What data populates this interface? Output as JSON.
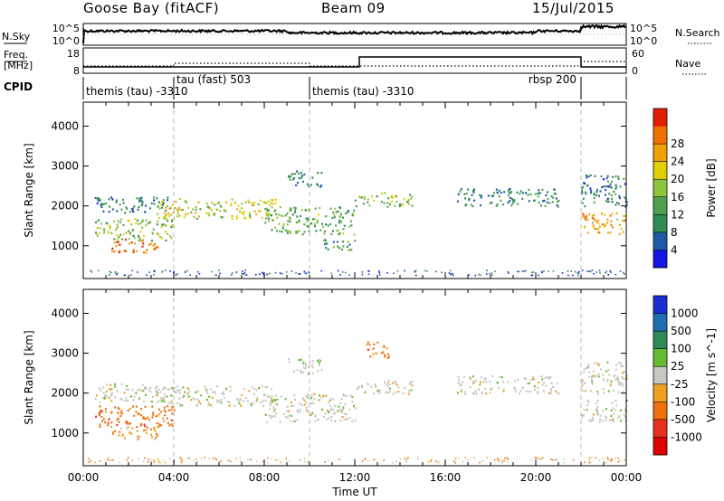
{
  "header": {
    "station": "Goose Bay (fitACF)",
    "beam": "Beam 09",
    "date": "15/Jul/2015"
  },
  "top_panels": {
    "nsky_label": "N.Sky",
    "nsearch_label": "N.Search",
    "freq_label_1": "Freq.",
    "freq_label_2": "[MHz]",
    "nave_label": "Nave",
    "cpid_label": "CPID",
    "noise_left_ticks": [
      "10^5",
      "10^0"
    ],
    "noise_right_ticks": [
      "10^5",
      "10^0"
    ],
    "freq_left_ticks": [
      "18",
      "8"
    ],
    "freq_right_ticks": [
      "60",
      "0"
    ],
    "cpid_segments": [
      {
        "start_h": 0,
        "end_h": 4,
        "label": "themis (tau) -3310"
      },
      {
        "start_h": 4,
        "end_h": 10,
        "label": "tau (fast) 503"
      },
      {
        "start_h": 10,
        "end_h": 22,
        "label": "themis (tau) -3310"
      },
      {
        "start_h": 22,
        "end_h": 24,
        "label": "rbsp 200"
      }
    ]
  },
  "colors": {
    "power": [
      "#1414e6",
      "#1e5aa8",
      "#2e8b57",
      "#4ea04e",
      "#8cc63c",
      "#e0d000",
      "#f0a000",
      "#f07000",
      "#e02000"
    ],
    "velocity": [
      "#1a2fd0",
      "#1f6eb0",
      "#2e8b57",
      "#66bb33",
      "#c8c8c0",
      "#f0a020",
      "#f07010",
      "#e83020",
      "#e00000"
    ]
  },
  "chart_data": [
    {
      "type": "heatmap",
      "name_in_colorbar": "Power [dB]",
      "ylabel": "Slant Range [km]",
      "ylim": [
        180,
        4600
      ],
      "xlim_hours": [
        0,
        24
      ],
      "y_ticks": [
        1000,
        2000,
        3000,
        4000
      ],
      "colorbar_ticks": [
        "4",
        "8",
        "12",
        "16",
        "20",
        "24",
        "28"
      ],
      "colorbar_range": [
        0,
        32
      ],
      "blobs": [
        {
          "t0": 0.5,
          "t1": 4.0,
          "r0": 1150,
          "r1": 1700,
          "v": 15
        },
        {
          "t0": 1.2,
          "t1": 3.3,
          "r0": 850,
          "r1": 1200,
          "v": 27
        },
        {
          "t0": 0.5,
          "t1": 3.8,
          "r0": 1850,
          "r1": 2250,
          "v": 8
        },
        {
          "t0": 3.2,
          "t1": 8.5,
          "r0": 1700,
          "r1": 2200,
          "v": 18
        },
        {
          "t0": 8.0,
          "t1": 12.0,
          "r0": 1300,
          "r1": 2000,
          "v": 13
        },
        {
          "t0": 9.0,
          "t1": 10.5,
          "r0": 2500,
          "r1": 2900,
          "v": 8
        },
        {
          "t0": 10.5,
          "t1": 12.0,
          "r0": 900,
          "r1": 1200,
          "v": 11
        },
        {
          "t0": 12.0,
          "t1": 14.5,
          "r0": 2000,
          "r1": 2350,
          "v": 15
        },
        {
          "t0": 16.5,
          "t1": 21.0,
          "r0": 2000,
          "r1": 2450,
          "v": 9
        },
        {
          "t0": 22.0,
          "t1": 24.0,
          "r0": 1300,
          "r1": 1850,
          "v": 22
        },
        {
          "t0": 22.0,
          "t1": 24.0,
          "r0": 2000,
          "r1": 2800,
          "v": 8
        }
      ]
    },
    {
      "type": "heatmap",
      "name_in_colorbar": "Velocity [m s^-1]",
      "ylabel": "Slant Range [km]",
      "xlabel": "Time UT",
      "ylim": [
        180,
        4600
      ],
      "xlim_hours": [
        0,
        24
      ],
      "y_ticks": [
        1000,
        2000,
        3000,
        4000
      ],
      "x_tick_labels": [
        "00:00",
        "04:00",
        "08:00",
        "12:00",
        "16:00",
        "20:00",
        "00:00"
      ],
      "colorbar_ticks": [
        "1000",
        "500",
        "100",
        "25",
        "-25",
        "-100",
        "-500",
        "-1000"
      ],
      "blobs": [
        {
          "t0": 0.5,
          "t1": 4.0,
          "r0": 1150,
          "r1": 1700,
          "c": 6
        },
        {
          "t0": 1.2,
          "t1": 3.3,
          "r0": 850,
          "r1": 1200,
          "c": 5
        },
        {
          "t0": 0.5,
          "t1": 3.8,
          "r0": 1800,
          "r1": 2250,
          "c": 4
        },
        {
          "t0": 3.2,
          "t1": 8.5,
          "r0": 1700,
          "r1": 2200,
          "c": 4
        },
        {
          "t0": 8.0,
          "t1": 12.0,
          "r0": 1300,
          "r1": 2000,
          "c": 4
        },
        {
          "t0": 9.0,
          "t1": 10.5,
          "r0": 2500,
          "r1": 2900,
          "c": 4
        },
        {
          "t0": 12.0,
          "t1": 14.5,
          "r0": 2000,
          "r1": 2350,
          "c": 4
        },
        {
          "t0": 12.5,
          "t1": 13.5,
          "r0": 2900,
          "r1": 3300,
          "c": 6
        },
        {
          "t0": 16.5,
          "t1": 21.0,
          "r0": 2000,
          "r1": 2450,
          "c": 4
        },
        {
          "t0": 22.0,
          "t1": 24.0,
          "r0": 1300,
          "r1": 1850,
          "c": 4
        },
        {
          "t0": 22.0,
          "t1": 24.0,
          "r0": 2000,
          "r1": 2800,
          "c": 4
        }
      ]
    }
  ]
}
